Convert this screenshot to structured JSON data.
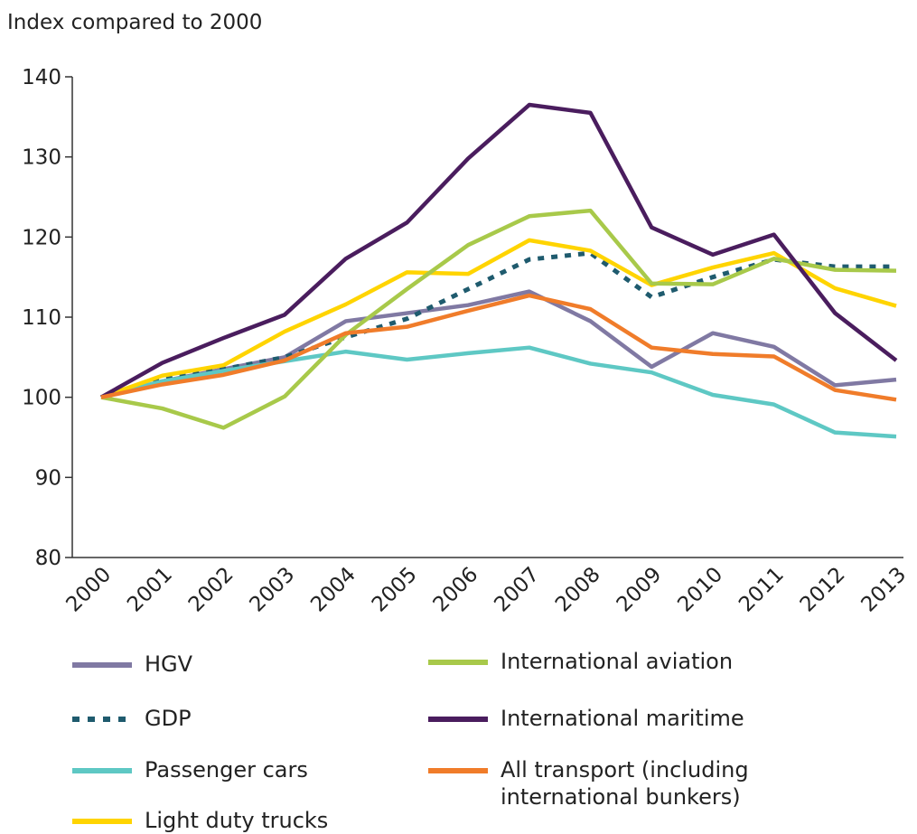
{
  "chart_data": {
    "type": "line",
    "ylabel": "Index compared to 2000",
    "categories": [
      "2000",
      "2001",
      "2002",
      "2003",
      "2004",
      "2005",
      "2006",
      "2007",
      "2008",
      "2009",
      "2010",
      "2011",
      "2012",
      "2013"
    ],
    "ylim": [
      80,
      140
    ],
    "yticks": [
      80,
      90,
      100,
      110,
      120,
      130,
      140
    ],
    "series": [
      {
        "name": "HGV",
        "color": "#8079a3",
        "values": [
          100,
          102,
          103.5,
          105,
          109.5,
          110.5,
          111.5,
          113.2,
          109.5,
          103.8,
          108,
          106.3,
          101.5,
          102.2
        ]
      },
      {
        "name": "GDP",
        "color": "#1f5b6e",
        "dashed": true,
        "values": [
          100,
          102.3,
          103.5,
          105,
          107.5,
          109.8,
          113.5,
          117.2,
          118,
          112.5,
          115,
          117.2,
          116.3,
          116.3
        ]
      },
      {
        "name": "Passenger cars",
        "color": "#5ec8c4",
        "values": [
          100,
          102,
          103.3,
          104.5,
          105.7,
          104.7,
          105.5,
          106.2,
          104.2,
          103.1,
          100.3,
          99.1,
          95.6,
          95.1
        ]
      },
      {
        "name": "Light duty trucks",
        "color": "#ffd400",
        "values": [
          100,
          102.7,
          104,
          108.2,
          111.6,
          115.6,
          115.4,
          119.6,
          118.3,
          114,
          116.2,
          118,
          113.6,
          111.4
        ]
      },
      {
        "name": "International aviation",
        "color": "#a8c94a",
        "values": [
          100,
          98.6,
          96.2,
          100.1,
          107.8,
          113.5,
          119,
          122.6,
          123.3,
          114.2,
          114.1,
          117.3,
          115.9,
          115.8
        ]
      },
      {
        "name": "International maritime",
        "color": "#4a1d5e",
        "values": [
          100,
          104.3,
          107.4,
          110.3,
          117.3,
          121.8,
          129.8,
          136.5,
          135.5,
          121.2,
          117.8,
          120.3,
          110.5,
          104.6
        ]
      },
      {
        "name": "All transport (including international bunkers)",
        "color": "#f07c2a",
        "values": [
          100,
          101.6,
          102.8,
          104.6,
          108,
          108.8,
          110.8,
          112.7,
          111,
          106.2,
          105.4,
          105.1,
          100.9,
          99.7
        ]
      }
    ]
  }
}
